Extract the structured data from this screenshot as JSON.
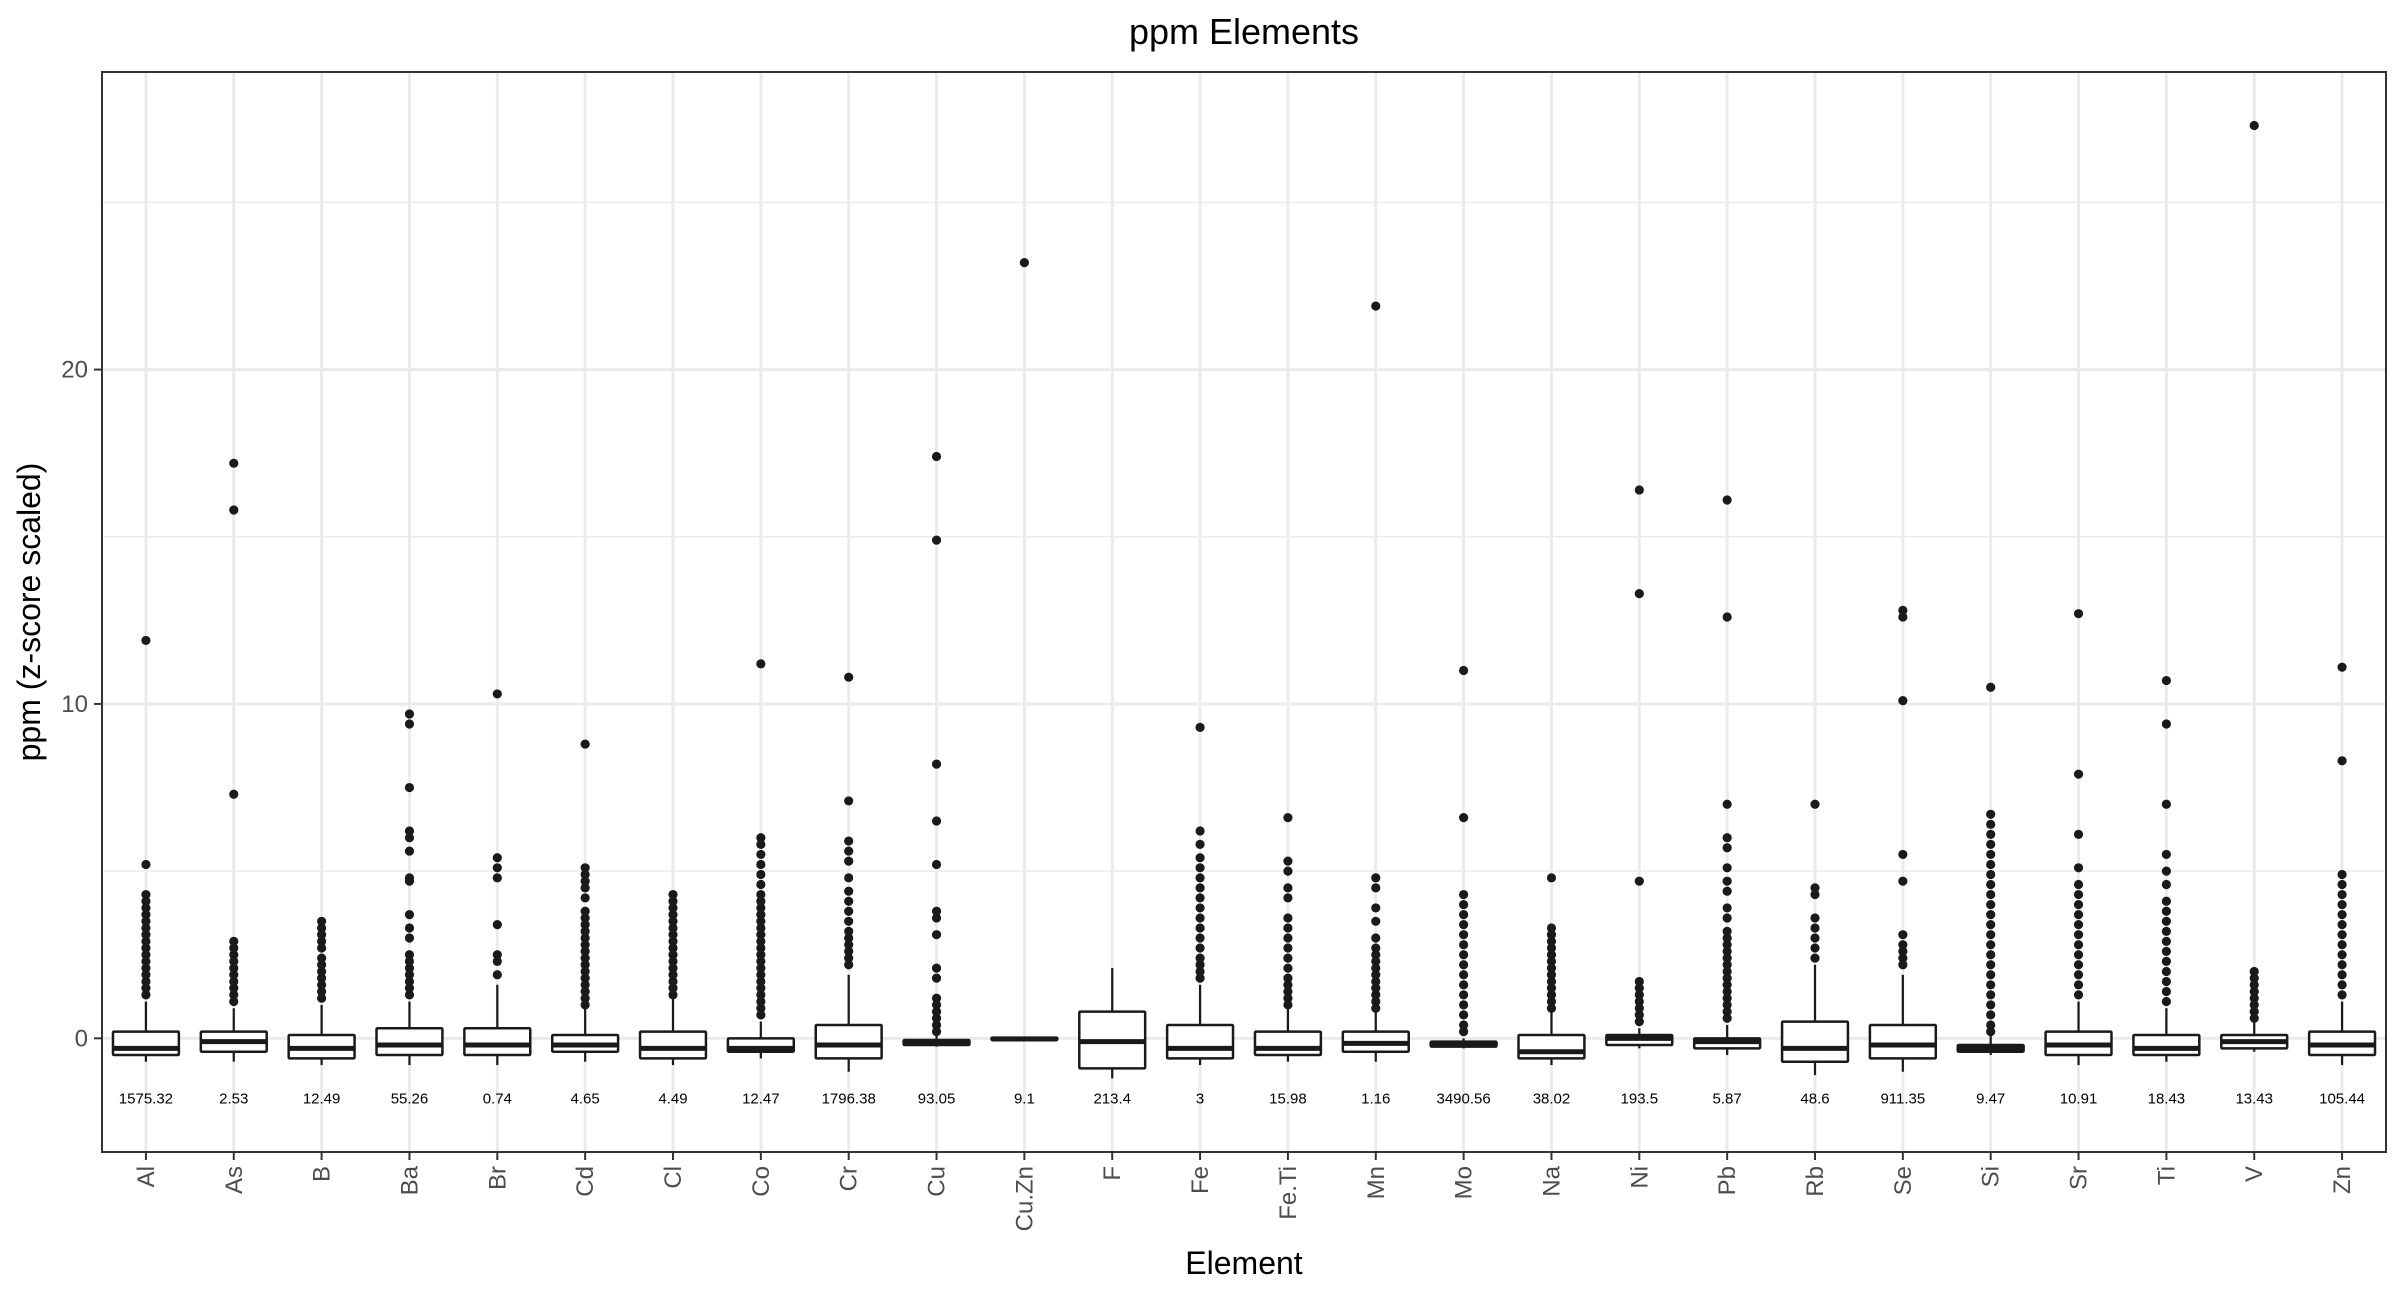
{
  "chart_data": {
    "type": "boxplot",
    "title": "ppm Elements",
    "xlabel": "Element",
    "ylabel": "ppm (z-score scaled)",
    "ylim": [
      -3.4,
      28.9
    ],
    "yticks": [
      0,
      10,
      20
    ],
    "grid": true,
    "legend": "none",
    "categories": [
      "Al",
      "As",
      "B",
      "Ba",
      "Br",
      "Cd",
      "Cl",
      "Co",
      "Cr",
      "Cu",
      "Cu.Zn",
      "F",
      "Fe",
      "Fe.Ti",
      "Mn",
      "Mo",
      "Na",
      "Ni",
      "Pb",
      "Rb",
      "Se",
      "Si",
      "Sr",
      "Ti",
      "V",
      "Zn"
    ],
    "annotations": [
      "1575.32",
      "2.53",
      "12.49",
      "55.26",
      "0.74",
      "4.65",
      "4.49",
      "12.47",
      "1796.38",
      "93.05",
      "9.1",
      "213.4",
      "3",
      "15.98",
      "1.16",
      "3490.56",
      "38.02",
      "193.5",
      "5.87",
      "48.6",
      "911.35",
      "9.47",
      "10.91",
      "18.43",
      "13.43",
      "105.44"
    ],
    "boxes": [
      {
        "q1": -0.5,
        "median": -0.3,
        "q3": 0.2,
        "wmin": -0.7,
        "wmax": 1.1,
        "outliers": [
          11.9,
          5.2,
          4.3,
          4.1,
          3.9,
          3.7,
          3.5,
          3.3,
          3.1,
          2.9,
          2.7,
          2.5,
          2.3,
          2.1,
          1.9,
          1.7,
          1.5,
          1.3
        ]
      },
      {
        "q1": -0.4,
        "median": -0.1,
        "q3": 0.2,
        "wmin": -0.7,
        "wmax": 0.9,
        "outliers": [
          17.2,
          15.8,
          7.3,
          2.9,
          2.7,
          2.5,
          2.3,
          2.1,
          1.9,
          1.7,
          1.5,
          1.3,
          1.1
        ]
      },
      {
        "q1": -0.6,
        "median": -0.3,
        "q3": 0.1,
        "wmin": -0.8,
        "wmax": 1.0,
        "outliers": [
          3.5,
          3.3,
          3.1,
          2.9,
          2.7,
          2.4,
          2.2,
          2.0,
          1.8,
          1.6,
          1.4,
          1.2
        ]
      },
      {
        "q1": -0.5,
        "median": -0.2,
        "q3": 0.3,
        "wmin": -0.8,
        "wmax": 1.1,
        "outliers": [
          9.7,
          9.4,
          7.5,
          6.2,
          6.0,
          5.6,
          4.8,
          4.7,
          3.7,
          3.3,
          3.0,
          2.5,
          2.3,
          2.1,
          1.9,
          1.7,
          1.5,
          1.3
        ]
      },
      {
        "q1": -0.5,
        "median": -0.2,
        "q3": 0.3,
        "wmin": -0.8,
        "wmax": 1.6,
        "outliers": [
          10.3,
          5.4,
          5.1,
          4.8,
          3.4,
          2.5,
          2.3,
          1.9
        ]
      },
      {
        "q1": -0.4,
        "median": -0.2,
        "q3": 0.1,
        "wmin": -0.7,
        "wmax": 0.9,
        "outliers": [
          8.8,
          5.1,
          4.9,
          4.7,
          4.5,
          4.2,
          3.8,
          3.6,
          3.4,
          3.2,
          3.0,
          2.8,
          2.6,
          2.4,
          2.2,
          2.0,
          1.8,
          1.6,
          1.4,
          1.2,
          1.0
        ]
      },
      {
        "q1": -0.6,
        "median": -0.3,
        "q3": 0.2,
        "wmin": -0.8,
        "wmax": 1.2,
        "outliers": [
          4.3,
          4.1,
          3.9,
          3.7,
          3.5,
          3.3,
          3.1,
          2.9,
          2.7,
          2.5,
          2.3,
          2.1,
          1.9,
          1.7,
          1.5,
          1.3
        ]
      },
      {
        "q1": -0.4,
        "median": -0.3,
        "q3": 0.0,
        "wmin": -0.6,
        "wmax": 0.5,
        "outliers": [
          11.2,
          6.0,
          5.8,
          5.5,
          5.2,
          4.9,
          4.6,
          4.3,
          4.1,
          3.9,
          3.7,
          3.5,
          3.3,
          3.1,
          2.9,
          2.7,
          2.5,
          2.3,
          2.1,
          1.9,
          1.7,
          1.5,
          1.3,
          1.1,
          0.9,
          0.7
        ]
      },
      {
        "q1": -0.6,
        "median": -0.2,
        "q3": 0.4,
        "wmin": -1.0,
        "wmax": 1.9,
        "outliers": [
          10.8,
          7.1,
          5.9,
          5.6,
          5.3,
          4.8,
          4.4,
          4.1,
          3.8,
          3.5,
          3.2,
          3.0,
          2.8,
          2.6,
          2.4,
          2.2
        ]
      },
      {
        "q1": -0.2,
        "median": -0.15,
        "q3": -0.05,
        "wmin": -0.25,
        "wmax": 0.1,
        "outliers": [
          17.4,
          14.9,
          8.2,
          6.5,
          5.2,
          3.8,
          3.6,
          3.1,
          2.1,
          1.8,
          1.2,
          1.0,
          0.8,
          0.6,
          0.4,
          0.2
        ]
      },
      {
        "q1": -0.05,
        "median": -0.02,
        "q3": 0.02,
        "wmin": -0.08,
        "wmax": 0.05,
        "outliers": [
          23.2
        ]
      },
      {
        "q1": -0.9,
        "median": -0.1,
        "q3": 0.8,
        "wmin": -1.2,
        "wmax": 2.1,
        "outliers": []
      },
      {
        "q1": -0.6,
        "median": -0.3,
        "q3": 0.4,
        "wmin": -0.8,
        "wmax": 1.6,
        "outliers": [
          9.3,
          6.2,
          5.8,
          5.4,
          5.1,
          4.8,
          4.5,
          4.2,
          3.9,
          3.6,
          3.3,
          3.0,
          2.7,
          2.4,
          2.2,
          2.0,
          1.8
        ]
      },
      {
        "q1": -0.5,
        "median": -0.3,
        "q3": 0.2,
        "wmin": -0.7,
        "wmax": 0.9,
        "outliers": [
          6.6,
          5.3,
          5.0,
          4.5,
          4.2,
          3.6,
          3.3,
          3.0,
          2.7,
          2.4,
          2.1,
          1.8,
          1.6,
          1.4,
          1.2,
          1.0
        ]
      },
      {
        "q1": -0.4,
        "median": -0.15,
        "q3": 0.2,
        "wmin": -0.7,
        "wmax": 0.8,
        "outliers": [
          21.9,
          4.8,
          4.5,
          3.9,
          3.5,
          3.0,
          2.7,
          2.5,
          2.3,
          2.1,
          1.9,
          1.7,
          1.5,
          1.3,
          1.1,
          0.9
        ]
      },
      {
        "q1": -0.25,
        "median": -0.2,
        "q3": -0.1,
        "wmin": -0.3,
        "wmax": 0.0,
        "outliers": [
          11.0,
          6.6,
          4.3,
          4.0,
          3.7,
          3.4,
          3.1,
          2.8,
          2.5,
          2.2,
          1.9,
          1.6,
          1.3,
          1.0,
          0.7,
          0.4,
          0.2
        ]
      },
      {
        "q1": -0.6,
        "median": -0.4,
        "q3": 0.1,
        "wmin": -0.8,
        "wmax": 0.8,
        "outliers": [
          4.8,
          3.3,
          3.1,
          2.9,
          2.7,
          2.5,
          2.3,
          2.1,
          1.9,
          1.7,
          1.5,
          1.3,
          1.1,
          0.9
        ]
      },
      {
        "q1": -0.2,
        "median": 0.0,
        "q3": 0.1,
        "wmin": -0.3,
        "wmax": 0.3,
        "outliers": [
          16.4,
          13.3,
          4.7,
          1.7,
          1.5,
          1.3,
          1.1,
          0.9,
          0.7,
          0.5
        ]
      },
      {
        "q1": -0.3,
        "median": -0.1,
        "q3": 0.0,
        "wmin": -0.5,
        "wmax": 0.4,
        "outliers": [
          16.1,
          12.6,
          7.0,
          6.0,
          5.7,
          5.1,
          4.7,
          4.4,
          3.9,
          3.6,
          3.2,
          3.0,
          2.8,
          2.6,
          2.4,
          2.2,
          2.0,
          1.8,
          1.6,
          1.4,
          1.2,
          1.0,
          0.8,
          0.6
        ]
      },
      {
        "q1": -0.7,
        "median": -0.3,
        "q3": 0.5,
        "wmin": -1.1,
        "wmax": 2.2,
        "outliers": [
          7.0,
          4.5,
          4.3,
          3.6,
          3.3,
          3.0,
          2.7,
          2.4
        ]
      },
      {
        "q1": -0.6,
        "median": -0.2,
        "q3": 0.4,
        "wmin": -1.0,
        "wmax": 1.9,
        "outliers": [
          12.8,
          12.6,
          10.1,
          5.5,
          4.7,
          3.1,
          2.8,
          2.6,
          2.4,
          2.2
        ]
      },
      {
        "q1": -0.4,
        "median": -0.3,
        "q3": -0.2,
        "wmin": -0.5,
        "wmax": 0.1,
        "outliers": [
          10.5,
          6.7,
          6.4,
          6.1,
          5.8,
          5.5,
          5.2,
          4.9,
          4.6,
          4.3,
          4.0,
          3.7,
          3.4,
          3.1,
          2.8,
          2.5,
          2.2,
          1.9,
          1.6,
          1.3,
          1.0,
          0.7,
          0.4,
          0.2
        ]
      },
      {
        "q1": -0.5,
        "median": -0.2,
        "q3": 0.2,
        "wmin": -0.8,
        "wmax": 1.1,
        "outliers": [
          12.7,
          7.9,
          6.1,
          5.1,
          4.6,
          4.3,
          4.0,
          3.7,
          3.4,
          3.1,
          2.8,
          2.5,
          2.2,
          1.9,
          1.6,
          1.3
        ]
      },
      {
        "q1": -0.5,
        "median": -0.3,
        "q3": 0.1,
        "wmin": -0.7,
        "wmax": 0.9,
        "outliers": [
          10.7,
          9.4,
          7.0,
          5.5,
          5.0,
          4.6,
          4.1,
          3.8,
          3.5,
          3.2,
          2.9,
          2.6,
          2.3,
          2.0,
          1.7,
          1.4,
          1.1
        ]
      },
      {
        "q1": -0.3,
        "median": -0.1,
        "q3": 0.1,
        "wmin": -0.4,
        "wmax": 0.5,
        "outliers": [
          27.3,
          2.0,
          1.8,
          1.6,
          1.4,
          1.2,
          1.0,
          0.8,
          0.6
        ]
      },
      {
        "q1": -0.5,
        "median": -0.2,
        "q3": 0.2,
        "wmin": -0.8,
        "wmax": 1.1,
        "outliers": [
          11.1,
          8.3,
          4.9,
          4.6,
          4.3,
          4.0,
          3.7,
          3.4,
          3.1,
          2.8,
          2.5,
          2.2,
          1.9,
          1.6,
          1.3
        ]
      }
    ]
  }
}
